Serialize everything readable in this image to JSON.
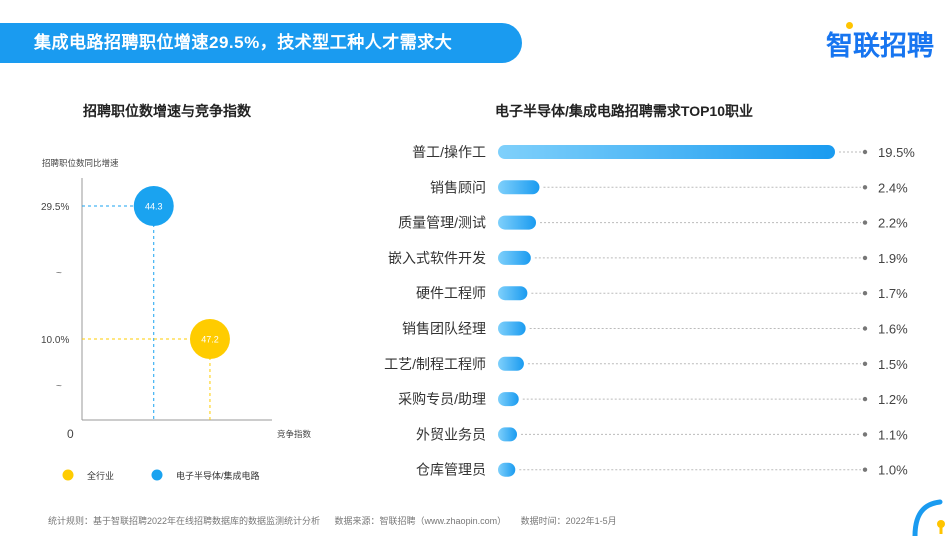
{
  "header": {
    "title": "集成电路招聘职位增速29.5%，技术型工种人才需求大",
    "logo": "智联招聘"
  },
  "left_chart_title": "招聘职位数增速与竞争指数",
  "right_chart_title": "电子半导体/集成电路招聘需求TOP10职业",
  "footer": {
    "rule": "统计规则：基于智联招聘2022年在线招聘数据库的数据监测统计分析",
    "source": "数据来源：智联招聘（www.zhaopin.com）",
    "time": "数据时间：2022年1-5月"
  },
  "colors": {
    "banner": "#1a9bf0",
    "blue": "#1aa3f0",
    "yellow": "#ffcc00",
    "logo": "#1775f0"
  },
  "chart_data": [
    {
      "type": "scatter",
      "title": "招聘职位数增速与竞争指数",
      "ylabel": "招聘职位数同比增速",
      "xlabel": "竞争指数",
      "origin_label": "0",
      "axis_break_labels": [
        "~",
        "~"
      ],
      "y_ticks": [
        "29.5%",
        "10.0%"
      ],
      "series": [
        {
          "name": "全行业",
          "color": "#ffcc00",
          "x": 47.2,
          "y": 10.0,
          "label": "47.2"
        },
        {
          "name": "电子半导体/集成电路",
          "color": "#1aa3f0",
          "x": 44.3,
          "y": 29.5,
          "label": "44.3"
        }
      ],
      "legend": "bottom"
    },
    {
      "type": "bar",
      "orientation": "horizontal",
      "title": "电子半导体/集成电路招聘需求TOP10职业",
      "categories": [
        "普工/操作工",
        "销售顾问",
        "质量管理/测试",
        "嵌入式软件开发",
        "硬件工程师",
        "销售团队经理",
        "工艺/制程工程师",
        "采购专员/助理",
        "外贸业务员",
        "仓库管理员"
      ],
      "values": [
        19.5,
        2.4,
        2.2,
        1.9,
        1.7,
        1.6,
        1.5,
        1.2,
        1.1,
        1.0
      ],
      "value_labels": [
        "19.5%",
        "2.4%",
        "2.2%",
        "1.9%",
        "1.7%",
        "1.6%",
        "1.5%",
        "1.2%",
        "1.1%",
        "1.0%"
      ]
    }
  ]
}
